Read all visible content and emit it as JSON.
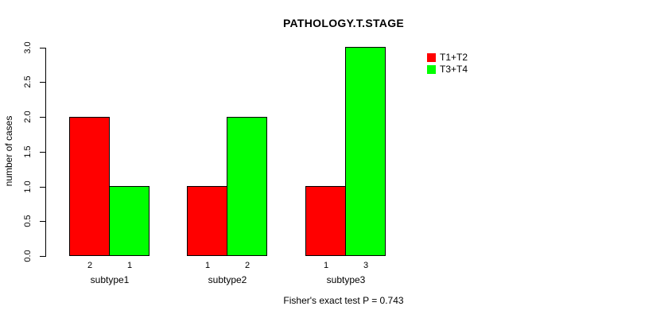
{
  "chart_data": {
    "type": "bar",
    "title": "PATHOLOGY.T.STAGE",
    "xlabel": "",
    "ylabel": "number of cases",
    "ylim": [
      0,
      3
    ],
    "grid": false,
    "legend_position": "top-right",
    "yticks": [
      0.0,
      0.5,
      1.0,
      1.5,
      2.0,
      2.5,
      3.0
    ],
    "ytick_labels": [
      "0.0",
      "0.5",
      "1.0",
      "1.5",
      "2.0",
      "2.5",
      "3.0"
    ],
    "categories": [
      "subtype1",
      "subtype2",
      "subtype3"
    ],
    "series": [
      {
        "name": "T1+T2",
        "color": "#ff0000",
        "values": [
          2,
          1,
          1
        ]
      },
      {
        "name": "T3+T4",
        "color": "#00ff00",
        "values": [
          1,
          2,
          3
        ]
      }
    ],
    "bar_labels": [
      [
        "2",
        "1"
      ],
      [
        "1",
        "2"
      ],
      [
        "1",
        "3"
      ]
    ],
    "annotation": "Fisher's exact test P = 0.743",
    "axis_color": "#000000",
    "bar_border_color": "#000000"
  }
}
